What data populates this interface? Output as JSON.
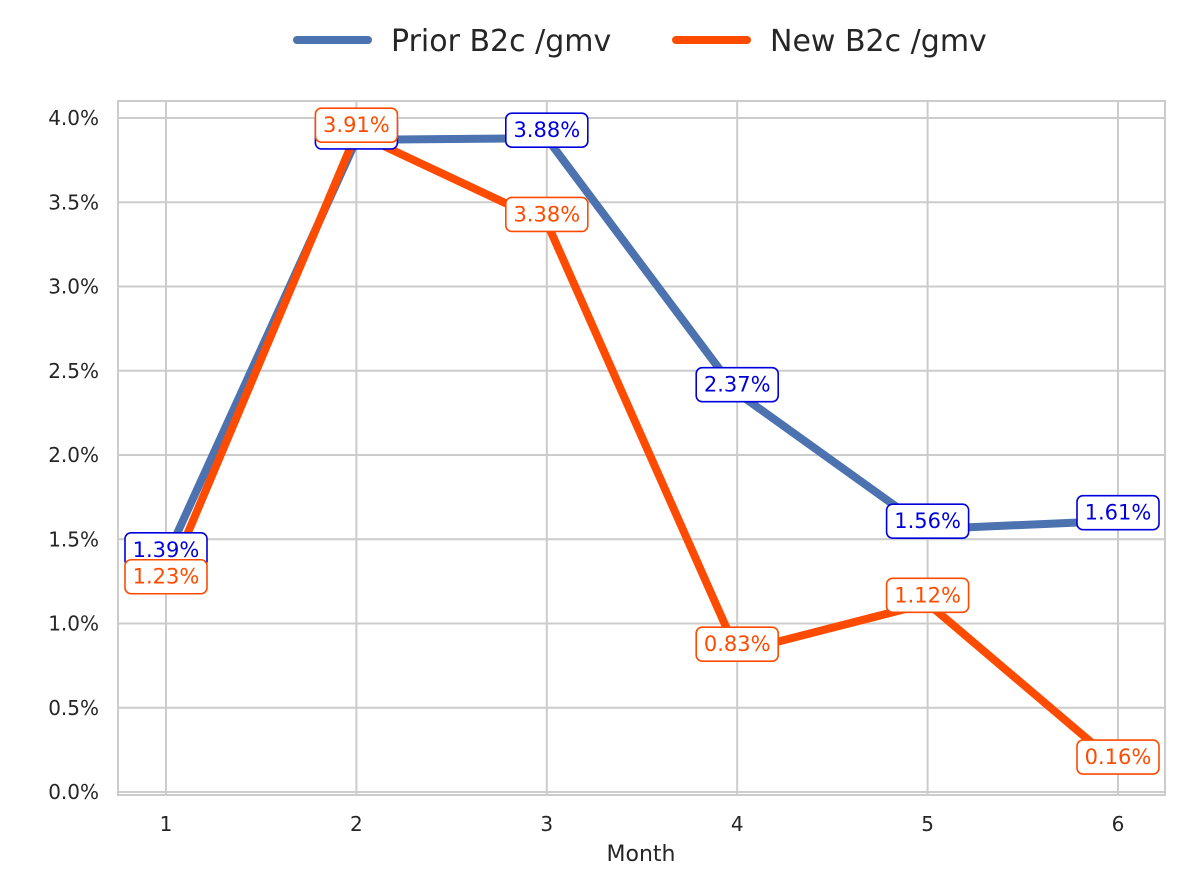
{
  "chart_data": {
    "type": "line",
    "x": [
      1,
      2,
      3,
      4,
      5,
      6
    ],
    "x_tick_labels": [
      "1",
      "2",
      "3",
      "4",
      "5",
      "6"
    ],
    "xlabel": "Month",
    "ylabel": "",
    "title": "",
    "ylim": [
      0,
      4.1
    ],
    "y_ticks": [
      0,
      0.5,
      1.0,
      1.5,
      2.0,
      2.5,
      3.0,
      3.5,
      4.0
    ],
    "y_tick_labels": [
      "0.0%",
      "0.5%",
      "1.0%",
      "1.5%",
      "2.0%",
      "2.5%",
      "3.0%",
      "3.5%",
      "4.0%"
    ],
    "grid": true,
    "legend": "top-center",
    "series": [
      {
        "name": "Prior B2c /gmv",
        "color": "#4c72b0",
        "label_color": "#0000dd",
        "values": [
          1.39,
          3.87,
          3.88,
          2.37,
          1.56,
          1.61
        ],
        "data_labels": [
          "1.39%",
          "3.87%",
          "3.88%",
          "2.37%",
          "1.56%",
          "1.61%"
        ]
      },
      {
        "name": "New B2c /gmv",
        "color": "#ff4b00",
        "label_color": "#ff4b00",
        "values": [
          1.23,
          3.91,
          3.38,
          0.83,
          1.12,
          0.16
        ],
        "data_labels": [
          "1.23%",
          "3.91%",
          "3.38%",
          "0.83%",
          "1.12%",
          "0.16%"
        ]
      }
    ]
  }
}
